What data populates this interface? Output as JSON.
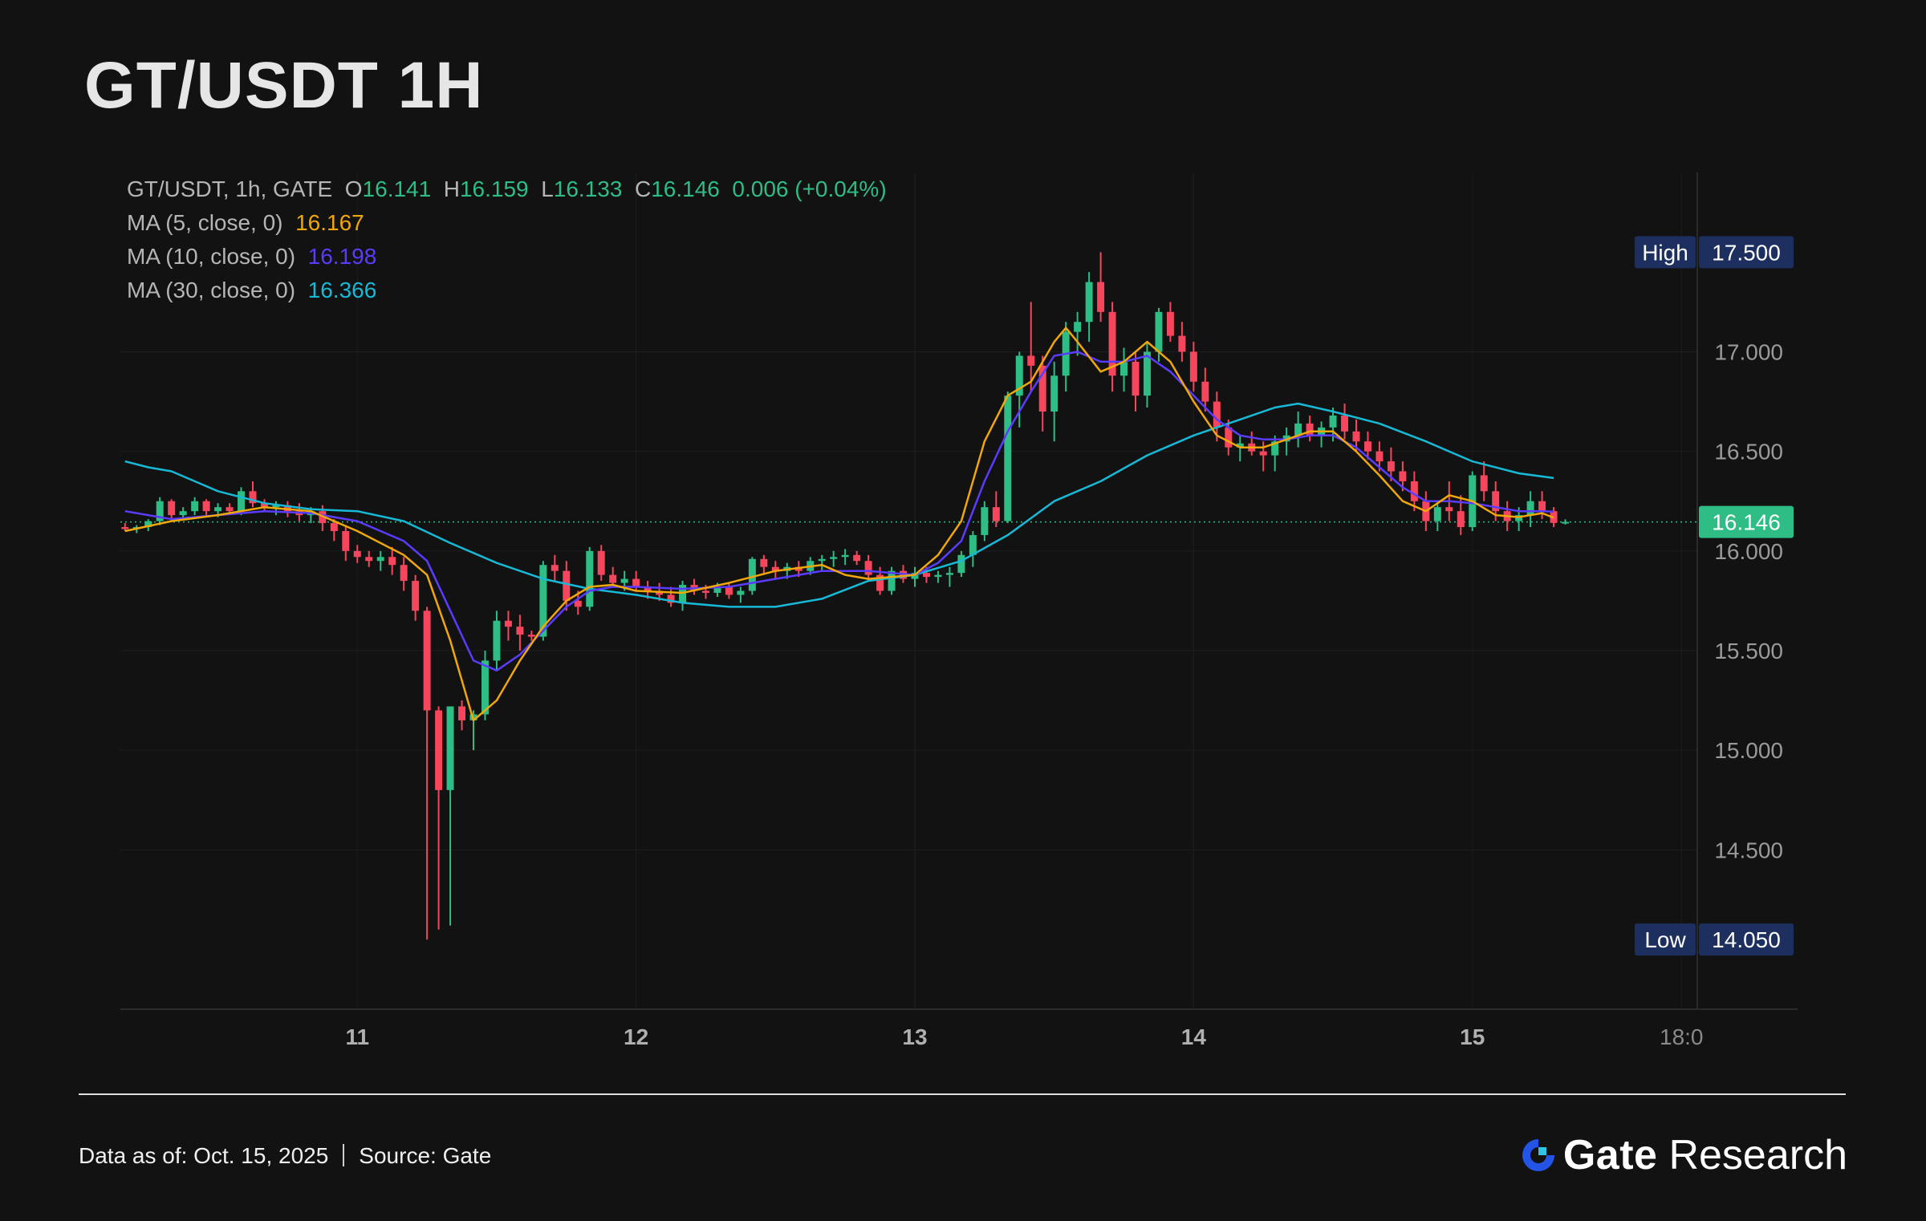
{
  "title": "GT/USDT 1H",
  "legend": {
    "symbol_line": "GT/USDT, 1h, GATE",
    "o_label": "O",
    "o_value": "16.141",
    "h_label": "H",
    "h_value": "16.159",
    "l_label": "L",
    "l_value": "16.133",
    "c_label": "C",
    "c_value": "16.146",
    "change": "0.006 (+0.04%)",
    "ma5_label": "MA (5, close, 0)",
    "ma5_value": "16.167",
    "ma10_label": "MA (10, close, 0)",
    "ma10_value": "16.198",
    "ma30_label": "MA (30, close, 0)",
    "ma30_value": "16.366"
  },
  "footer": {
    "date_text": "Data as of: Oct. 15, 2025",
    "source_text": "Source:  Gate",
    "brand_name": "Gate",
    "brand_suffix": "Research"
  },
  "colors": {
    "up": "#2ebd85",
    "down": "#f6465d",
    "ma5": "#f0a70a",
    "ma10": "#5a3cff",
    "ma30": "#16b9d6",
    "badge_bg": "#1c2f5e",
    "background": "#121212",
    "brand_blue": "#2354e6"
  },
  "chart_data": {
    "type": "candlestick",
    "y_range": [
      13.7,
      17.9
    ],
    "y_ticks": [
      "17.000",
      "16.500",
      "16.000",
      "15.500",
      "15.000",
      "14.500"
    ],
    "x_ticks": [
      {
        "label": "11",
        "t": 12
      },
      {
        "label": "12",
        "t": 36
      },
      {
        "label": "13",
        "t": 60
      },
      {
        "label": "14",
        "t": 84
      },
      {
        "label": "15",
        "t": 108
      },
      {
        "label": "18:0",
        "t": 126
      }
    ],
    "t_range": [
      -8.4,
      136
    ],
    "high_badge": {
      "label": "High",
      "value": "17.500",
      "price": 17.5
    },
    "low_badge": {
      "label": "Low",
      "value": "14.050",
      "price": 14.05
    },
    "last_price_badge": {
      "value": "16.146",
      "price": 16.146
    },
    "candle_step_hours": 1,
    "candle_start_t": -8,
    "candles": [
      [
        16.12,
        16.14,
        16.1,
        16.11
      ],
      [
        16.11,
        16.13,
        16.09,
        16.12
      ],
      [
        16.12,
        16.16,
        16.1,
        16.15
      ],
      [
        16.15,
        16.27,
        16.13,
        16.25
      ],
      [
        16.25,
        16.26,
        16.15,
        16.18
      ],
      [
        16.18,
        16.22,
        16.16,
        16.2
      ],
      [
        16.2,
        16.27,
        16.18,
        16.25
      ],
      [
        16.25,
        16.26,
        16.18,
        16.2
      ],
      [
        16.2,
        16.24,
        16.17,
        16.22
      ],
      [
        16.22,
        16.24,
        16.18,
        16.2
      ],
      [
        16.2,
        16.32,
        16.18,
        16.3
      ],
      [
        16.3,
        16.35,
        16.22,
        16.24
      ],
      [
        16.24,
        16.26,
        16.2,
        16.22
      ],
      [
        16.22,
        16.25,
        16.18,
        16.23
      ],
      [
        16.23,
        16.25,
        16.17,
        16.2
      ],
      [
        16.2,
        16.24,
        16.15,
        16.18
      ],
      [
        16.18,
        16.22,
        16.14,
        16.2
      ],
      [
        16.2,
        16.23,
        16.1,
        16.14
      ],
      [
        16.14,
        16.16,
        16.05,
        16.1
      ],
      [
        16.1,
        16.12,
        15.95,
        16.0
      ],
      [
        16.0,
        16.03,
        15.94,
        15.97
      ],
      [
        15.97,
        16.0,
        15.92,
        15.95
      ],
      [
        15.95,
        16.0,
        15.9,
        15.97
      ],
      [
        15.97,
        16.02,
        15.88,
        15.93
      ],
      [
        15.93,
        15.97,
        15.8,
        15.85
      ],
      [
        15.85,
        15.88,
        15.65,
        15.7
      ],
      [
        15.7,
        15.72,
        14.05,
        15.2
      ],
      [
        15.2,
        15.22,
        14.1,
        14.8
      ],
      [
        14.8,
        15.2,
        14.12,
        15.22
      ],
      [
        15.22,
        15.25,
        15.1,
        15.15
      ],
      [
        15.15,
        15.2,
        15.0,
        15.18
      ],
      [
        15.18,
        15.5,
        15.15,
        15.45
      ],
      [
        15.45,
        15.7,
        15.4,
        15.65
      ],
      [
        15.65,
        15.7,
        15.55,
        15.62
      ],
      [
        15.62,
        15.68,
        15.5,
        15.58
      ],
      [
        15.58,
        15.6,
        15.55,
        15.57
      ],
      [
        15.57,
        15.95,
        15.55,
        15.93
      ],
      [
        15.93,
        15.98,
        15.85,
        15.9
      ],
      [
        15.9,
        15.95,
        15.7,
        15.75
      ],
      [
        15.75,
        15.8,
        15.68,
        15.72
      ],
      [
        15.72,
        16.02,
        15.7,
        16.0
      ],
      [
        16.0,
        16.03,
        15.85,
        15.88
      ],
      [
        15.88,
        15.92,
        15.82,
        15.84
      ],
      [
        15.84,
        15.9,
        15.8,
        15.86
      ],
      [
        15.86,
        15.9,
        15.8,
        15.82
      ],
      [
        15.82,
        15.85,
        15.76,
        15.8
      ],
      [
        15.8,
        15.84,
        15.75,
        15.78
      ],
      [
        15.78,
        15.82,
        15.72,
        15.74
      ],
      [
        15.74,
        15.85,
        15.7,
        15.83
      ],
      [
        15.83,
        15.86,
        15.78,
        15.8
      ],
      [
        15.8,
        15.83,
        15.76,
        15.79
      ],
      [
        15.79,
        15.84,
        15.77,
        15.82
      ],
      [
        15.82,
        15.84,
        15.76,
        15.78
      ],
      [
        15.78,
        15.82,
        15.74,
        15.8
      ],
      [
        15.8,
        15.97,
        15.78,
        15.96
      ],
      [
        15.96,
        15.98,
        15.88,
        15.92
      ],
      [
        15.92,
        15.95,
        15.86,
        15.9
      ],
      [
        15.9,
        15.94,
        15.86,
        15.92
      ],
      [
        15.92,
        15.95,
        15.87,
        15.9
      ],
      [
        15.9,
        15.97,
        15.88,
        15.95
      ],
      [
        15.95,
        15.98,
        15.9,
        15.96
      ],
      [
        15.96,
        16.0,
        15.92,
        15.97
      ],
      [
        15.97,
        16.01,
        15.93,
        15.98
      ],
      [
        15.98,
        16.0,
        15.93,
        15.95
      ],
      [
        15.95,
        15.98,
        15.85,
        15.88
      ],
      [
        15.88,
        15.92,
        15.78,
        15.8
      ],
      [
        15.8,
        15.92,
        15.78,
        15.9
      ],
      [
        15.9,
        15.93,
        15.84,
        15.86
      ],
      [
        15.86,
        15.92,
        15.82,
        15.89
      ],
      [
        15.89,
        15.92,
        15.84,
        15.87
      ],
      [
        15.87,
        15.9,
        15.84,
        15.88
      ],
      [
        15.88,
        15.92,
        15.82,
        15.89
      ],
      [
        15.89,
        16.0,
        15.87,
        15.98
      ],
      [
        15.98,
        16.1,
        15.92,
        16.08
      ],
      [
        16.08,
        16.25,
        16.05,
        16.22
      ],
      [
        16.22,
        16.3,
        16.12,
        16.15
      ],
      [
        16.15,
        16.8,
        16.14,
        16.78
      ],
      [
        16.78,
        17.0,
        16.62,
        16.98
      ],
      [
        16.98,
        17.25,
        16.8,
        16.93
      ],
      [
        16.93,
        16.98,
        16.6,
        16.7
      ],
      [
        16.7,
        16.95,
        16.55,
        16.88
      ],
      [
        16.88,
        17.15,
        16.8,
        17.1
      ],
      [
        17.1,
        17.2,
        16.98,
        17.15
      ],
      [
        17.15,
        17.4,
        17.05,
        17.35
      ],
      [
        17.35,
        17.5,
        17.15,
        17.2
      ],
      [
        17.2,
        17.25,
        16.8,
        16.88
      ],
      [
        16.88,
        17.02,
        16.8,
        16.95
      ],
      [
        16.95,
        17.0,
        16.7,
        16.78
      ],
      [
        16.78,
        17.05,
        16.72,
        17.0
      ],
      [
        17.0,
        17.22,
        16.95,
        17.2
      ],
      [
        17.2,
        17.25,
        17.05,
        17.08
      ],
      [
        17.08,
        17.15,
        16.95,
        17.0
      ],
      [
        17.0,
        17.05,
        16.8,
        16.85
      ],
      [
        16.85,
        16.92,
        16.7,
        16.75
      ],
      [
        16.75,
        16.8,
        16.55,
        16.62
      ],
      [
        16.62,
        16.66,
        16.48,
        16.52
      ],
      [
        16.52,
        16.58,
        16.45,
        16.54
      ],
      [
        16.54,
        16.6,
        16.48,
        16.5
      ],
      [
        16.5,
        16.55,
        16.4,
        16.48
      ],
      [
        16.48,
        16.58,
        16.4,
        16.55
      ],
      [
        16.55,
        16.62,
        16.48,
        16.58
      ],
      [
        16.58,
        16.7,
        16.52,
        16.64
      ],
      [
        16.64,
        16.68,
        16.55,
        16.58
      ],
      [
        16.58,
        16.65,
        16.52,
        16.62
      ],
      [
        16.62,
        16.72,
        16.55,
        16.68
      ],
      [
        16.68,
        16.74,
        16.56,
        16.6
      ],
      [
        16.6,
        16.66,
        16.5,
        16.55
      ],
      [
        16.55,
        16.6,
        16.46,
        16.5
      ],
      [
        16.5,
        16.55,
        16.4,
        16.45
      ],
      [
        16.45,
        16.52,
        16.35,
        16.4
      ],
      [
        16.4,
        16.45,
        16.3,
        16.35
      ],
      [
        16.35,
        16.4,
        16.2,
        16.25
      ],
      [
        16.25,
        16.3,
        16.1,
        16.15
      ],
      [
        16.15,
        16.25,
        16.1,
        16.22
      ],
      [
        16.22,
        16.35,
        16.15,
        16.2
      ],
      [
        16.2,
        16.28,
        16.08,
        16.12
      ],
      [
        16.12,
        16.4,
        16.1,
        16.38
      ],
      [
        16.38,
        16.45,
        16.25,
        16.3
      ],
      [
        16.3,
        16.35,
        16.15,
        16.2
      ],
      [
        16.2,
        16.25,
        16.1,
        16.15
      ],
      [
        16.15,
        16.22,
        16.1,
        16.18
      ],
      [
        16.18,
        16.3,
        16.12,
        16.25
      ],
      [
        16.25,
        16.3,
        16.16,
        16.2
      ],
      [
        16.2,
        16.22,
        16.12,
        16.141
      ],
      [
        16.141,
        16.159,
        16.133,
        16.146
      ]
    ],
    "ma5": [
      [
        -8,
        16.1
      ],
      [
        -4,
        16.15
      ],
      [
        0,
        16.18
      ],
      [
        4,
        16.22
      ],
      [
        8,
        16.2
      ],
      [
        12,
        16.1
      ],
      [
        16,
        15.98
      ],
      [
        18,
        15.88
      ],
      [
        20,
        15.55
      ],
      [
        22,
        15.15
      ],
      [
        24,
        15.25
      ],
      [
        26,
        15.45
      ],
      [
        28,
        15.62
      ],
      [
        30,
        15.75
      ],
      [
        32,
        15.82
      ],
      [
        34,
        15.83
      ],
      [
        36,
        15.8
      ],
      [
        40,
        15.79
      ],
      [
        44,
        15.84
      ],
      [
        48,
        15.9
      ],
      [
        52,
        15.93
      ],
      [
        54,
        15.88
      ],
      [
        56,
        15.86
      ],
      [
        58,
        15.87
      ],
      [
        60,
        15.88
      ],
      [
        62,
        15.98
      ],
      [
        64,
        16.15
      ],
      [
        66,
        16.55
      ],
      [
        68,
        16.78
      ],
      [
        70,
        16.85
      ],
      [
        72,
        17.05
      ],
      [
        73,
        17.12
      ],
      [
        74,
        17.05
      ],
      [
        76,
        16.9
      ],
      [
        78,
        16.95
      ],
      [
        80,
        17.05
      ],
      [
        82,
        16.95
      ],
      [
        84,
        16.75
      ],
      [
        86,
        16.58
      ],
      [
        88,
        16.52
      ],
      [
        90,
        16.52
      ],
      [
        92,
        16.56
      ],
      [
        94,
        16.6
      ],
      [
        96,
        16.6
      ],
      [
        98,
        16.5
      ],
      [
        100,
        16.38
      ],
      [
        102,
        16.25
      ],
      [
        104,
        16.2
      ],
      [
        106,
        16.28
      ],
      [
        108,
        16.25
      ],
      [
        110,
        16.18
      ],
      [
        112,
        16.17
      ],
      [
        114,
        16.19
      ],
      [
        115,
        16.167
      ]
    ],
    "ma10": [
      [
        -8,
        16.2
      ],
      [
        -4,
        16.16
      ],
      [
        0,
        16.18
      ],
      [
        4,
        16.2
      ],
      [
        8,
        16.19
      ],
      [
        12,
        16.15
      ],
      [
        16,
        16.05
      ],
      [
        18,
        15.95
      ],
      [
        20,
        15.7
      ],
      [
        22,
        15.45
      ],
      [
        24,
        15.4
      ],
      [
        26,
        15.48
      ],
      [
        28,
        15.6
      ],
      [
        30,
        15.72
      ],
      [
        32,
        15.8
      ],
      [
        34,
        15.82
      ],
      [
        36,
        15.82
      ],
      [
        40,
        15.81
      ],
      [
        44,
        15.82
      ],
      [
        48,
        15.86
      ],
      [
        52,
        15.9
      ],
      [
        56,
        15.9
      ],
      [
        60,
        15.88
      ],
      [
        62,
        15.94
      ],
      [
        64,
        16.05
      ],
      [
        66,
        16.35
      ],
      [
        68,
        16.6
      ],
      [
        70,
        16.8
      ],
      [
        72,
        16.98
      ],
      [
        74,
        17.0
      ],
      [
        76,
        16.95
      ],
      [
        78,
        16.95
      ],
      [
        80,
        16.98
      ],
      [
        82,
        16.9
      ],
      [
        84,
        16.78
      ],
      [
        86,
        16.66
      ],
      [
        88,
        16.58
      ],
      [
        90,
        16.56
      ],
      [
        92,
        16.56
      ],
      [
        94,
        16.58
      ],
      [
        96,
        16.58
      ],
      [
        98,
        16.52
      ],
      [
        100,
        16.42
      ],
      [
        102,
        16.32
      ],
      [
        104,
        16.25
      ],
      [
        106,
        16.25
      ],
      [
        108,
        16.24
      ],
      [
        110,
        16.22
      ],
      [
        112,
        16.2
      ],
      [
        114,
        16.2
      ],
      [
        115,
        16.198
      ]
    ],
    "ma30": [
      [
        -8,
        16.45
      ],
      [
        -6,
        16.42
      ],
      [
        -4,
        16.4
      ],
      [
        0,
        16.3
      ],
      [
        4,
        16.24
      ],
      [
        8,
        16.21
      ],
      [
        12,
        16.2
      ],
      [
        16,
        16.15
      ],
      [
        20,
        16.04
      ],
      [
        24,
        15.94
      ],
      [
        28,
        15.86
      ],
      [
        32,
        15.81
      ],
      [
        36,
        15.78
      ],
      [
        40,
        15.74
      ],
      [
        44,
        15.72
      ],
      [
        48,
        15.72
      ],
      [
        52,
        15.76
      ],
      [
        56,
        15.85
      ],
      [
        60,
        15.88
      ],
      [
        64,
        15.95
      ],
      [
        68,
        16.08
      ],
      [
        72,
        16.25
      ],
      [
        76,
        16.35
      ],
      [
        80,
        16.48
      ],
      [
        84,
        16.58
      ],
      [
        88,
        16.66
      ],
      [
        91,
        16.72
      ],
      [
        93,
        16.74
      ],
      [
        96,
        16.7
      ],
      [
        100,
        16.64
      ],
      [
        104,
        16.55
      ],
      [
        108,
        16.45
      ],
      [
        112,
        16.39
      ],
      [
        115,
        16.366
      ]
    ]
  }
}
